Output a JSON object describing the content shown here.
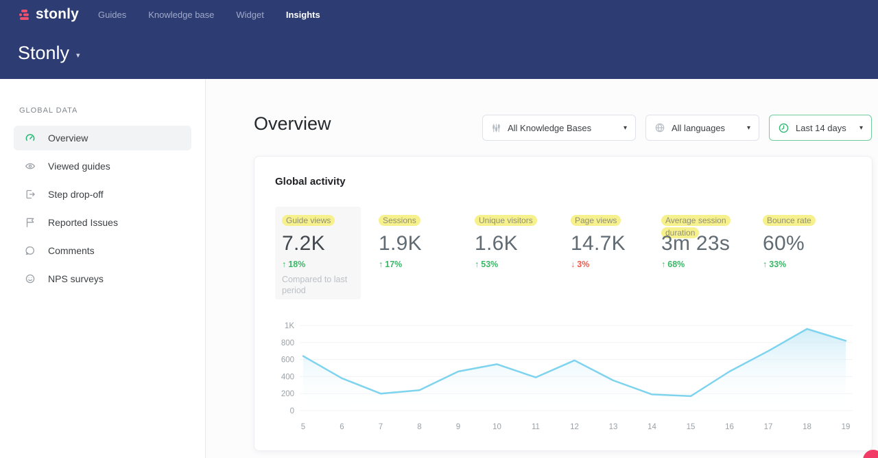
{
  "navbar": {
    "logo_text": "stonly",
    "items": [
      {
        "label": "Guides",
        "active": false
      },
      {
        "label": "Knowledge base",
        "active": false
      },
      {
        "label": "Widget",
        "active": false
      },
      {
        "label": "Insights",
        "active": true
      }
    ],
    "workspace_title": "Stonly",
    "workspace_caret": "▾"
  },
  "sidebar": {
    "section_label": "GLOBAL DATA",
    "items": [
      {
        "label": "Overview",
        "icon": "gauge",
        "active": true
      },
      {
        "label": "Viewed guides",
        "icon": "eye",
        "active": false
      },
      {
        "label": "Step drop-off",
        "icon": "step-out",
        "active": false
      },
      {
        "label": "Reported Issues",
        "icon": "flag",
        "active": false
      },
      {
        "label": "Comments",
        "icon": "comment",
        "active": false
      },
      {
        "label": "NPS surveys",
        "icon": "smiley",
        "active": false
      }
    ]
  },
  "main": {
    "page_title": "Overview",
    "filters": [
      {
        "label": "All Knowledge Bases",
        "icon": "sliders",
        "caret": "▾",
        "active": false
      },
      {
        "label": "All languages",
        "icon": "globe",
        "caret": "▾",
        "active": false
      },
      {
        "label": "Last 14 days",
        "icon": "clock",
        "caret": "▾",
        "active": true
      }
    ],
    "card": {
      "title": "Global activity",
      "metrics": [
        {
          "label": "Guide views",
          "value": "7.2K",
          "arrow": "↑",
          "change": "18%",
          "direction": "up",
          "note": "Compared to last period",
          "selected": true
        },
        {
          "label": "Sessions",
          "value": "1.9K",
          "arrow": "↑",
          "change": "17%",
          "direction": "up",
          "note": "",
          "selected": false
        },
        {
          "label": "Unique visitors",
          "value": "1.6K",
          "arrow": "↑",
          "change": "53%",
          "direction": "up",
          "note": "",
          "selected": false
        },
        {
          "label": "Page views",
          "value": "14.7K",
          "arrow": "↓",
          "change": "3%",
          "direction": "down",
          "note": "",
          "selected": false
        },
        {
          "label": "Average session duration",
          "value": "3m 23s",
          "arrow": "↑",
          "change": "68%",
          "direction": "up",
          "note": "",
          "selected": false
        },
        {
          "label": "Bounce rate",
          "value": "60%",
          "arrow": "↑",
          "change": "33%",
          "direction": "up",
          "note": "",
          "selected": false
        }
      ]
    }
  },
  "chart_data": {
    "type": "area",
    "title": "Global activity",
    "series": [
      {
        "name": "Guide views",
        "x": [
          5,
          6,
          7,
          8,
          9,
          10,
          11,
          12,
          13,
          14,
          15,
          16,
          17,
          18,
          19
        ],
        "values": [
          640,
          380,
          200,
          240,
          460,
          545,
          390,
          590,
          355,
          190,
          170,
          460,
          700,
          960,
          820
        ]
      }
    ],
    "x_tick_labels": [
      "5",
      "6",
      "7",
      "8",
      "9",
      "10",
      "11",
      "12",
      "13",
      "14",
      "15",
      "16",
      "17",
      "18",
      "19"
    ],
    "y_tick_labels": [
      "1K",
      "800",
      "600",
      "400",
      "200",
      "0"
    ],
    "y_tick_values": [
      1000,
      800,
      600,
      400,
      200,
      0
    ],
    "ylim": [
      0,
      1000
    ],
    "grid": true,
    "legend": false
  },
  "colors": {
    "navbar_navy": "#2d3d73",
    "brand_pink": "#f0506e",
    "accent_green": "#3bb767",
    "negative_red": "#ee5a4b",
    "highlight_yellow": "#f6f08d",
    "chart_line_blue": "#7ed3ee",
    "axis_label_gray": "#9aa0a6",
    "filter_active_green": "#6fcb9c",
    "chat_bubble_pink": "#f23a66"
  }
}
